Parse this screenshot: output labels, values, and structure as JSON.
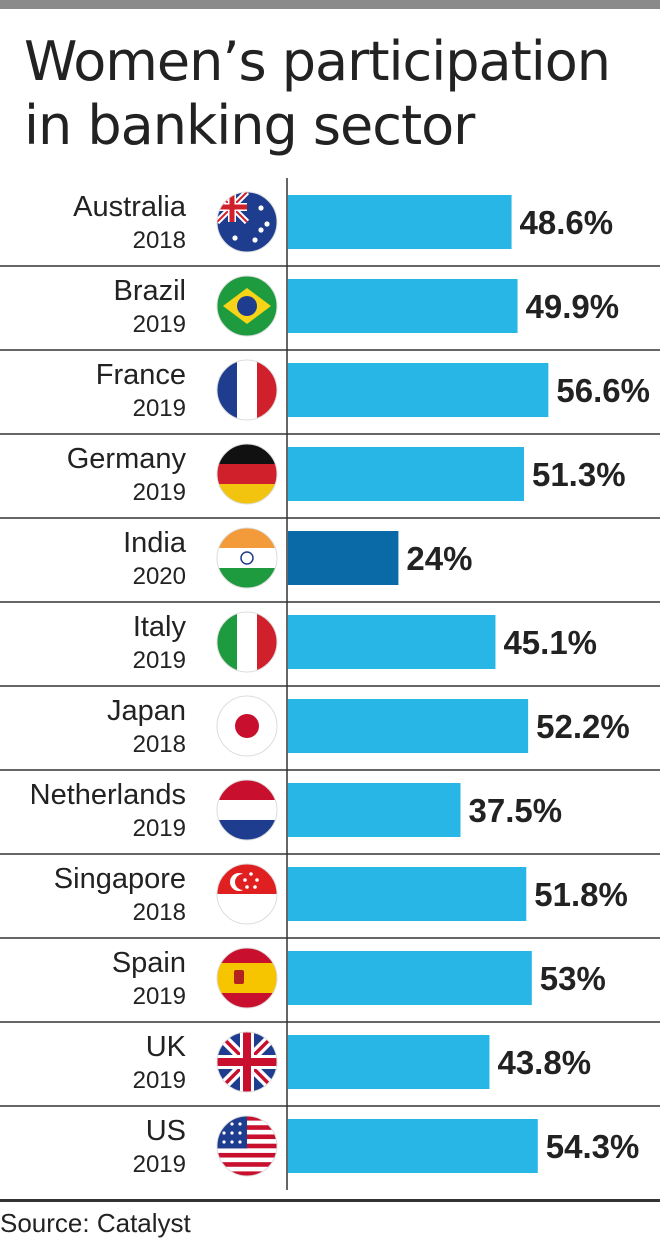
{
  "title_line1": "Women’s participation",
  "title_line2": "in banking sector",
  "source": "Source: Catalyst",
  "colors": {
    "bar": "#27b6e6",
    "highlight": "#0a6aa8",
    "rule": "#333333",
    "text": "#222222"
  },
  "chart_data": {
    "type": "bar",
    "orientation": "horizontal",
    "unit": "%",
    "categories": [
      "Australia",
      "Brazil",
      "France",
      "Germany",
      "India",
      "Italy",
      "Japan",
      "Netherlands",
      "Singapore",
      "Spain",
      "UK",
      "US"
    ],
    "years": [
      "2018",
      "2019",
      "2019",
      "2019",
      "2020",
      "2019",
      "2018",
      "2019",
      "2018",
      "2019",
      "2019",
      "2019"
    ],
    "values": [
      48.6,
      49.9,
      56.6,
      51.3,
      24,
      45.1,
      52.2,
      37.5,
      51.8,
      53,
      43.8,
      54.3
    ],
    "labels": [
      "48.6%",
      "49.9%",
      "56.6%",
      "51.3%",
      "24%",
      "45.1%",
      "52.2%",
      "37.5%",
      "51.8%",
      "53%",
      "43.8%",
      "54.3%"
    ],
    "flag_icons": [
      "australia-flag-icon",
      "brazil-flag-icon",
      "france-flag-icon",
      "germany-flag-icon",
      "india-flag-icon",
      "italy-flag-icon",
      "japan-flag-icon",
      "netherlands-flag-icon",
      "singapore-flag-icon",
      "spain-flag-icon",
      "uk-flag-icon",
      "us-flag-icon"
    ],
    "highlighted": "India"
  }
}
